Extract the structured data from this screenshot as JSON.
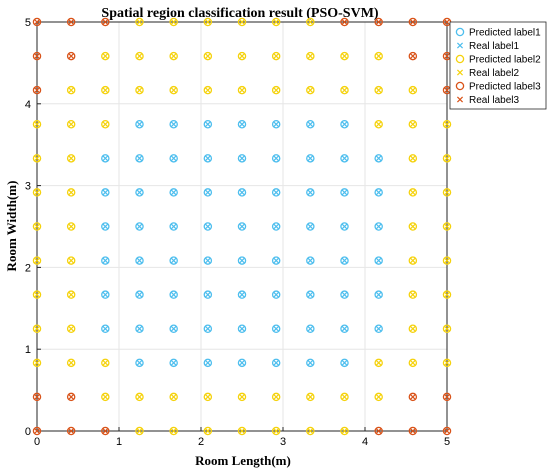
{
  "chart_data": {
    "type": "scatter",
    "title": "Spatial region classification result (PSO-SVM)",
    "xlabel": "Room Length(m)",
    "ylabel": "Room Width(m)",
    "xlim": [
      0,
      5
    ],
    "ylim": [
      0,
      5
    ],
    "xticks": [
      "0",
      "1",
      "2",
      "3",
      "4",
      "5"
    ],
    "yticks": [
      "0",
      "1",
      "2",
      "3",
      "4",
      "5"
    ],
    "grid": true,
    "legend_position": "top-right",
    "x": [
      0,
      0.4167,
      0.8333,
      1.25,
      1.6667,
      2.0833,
      2.5,
      2.9167,
      3.3333,
      3.75,
      4.1667,
      4.5833,
      5
    ],
    "y": [
      0,
      0.4167,
      0.8333,
      1.25,
      1.6667,
      2.0833,
      2.5,
      2.9167,
      3.3333,
      3.75,
      4.1667,
      4.5833,
      5
    ],
    "label_grid_rows_top_to_bottom": [
      "3332222223333",
      "3322222222233",
      "3222222222223",
      "2221111111222",
      "2211111111122",
      "2211111111122",
      "2211111111122",
      "2211111111122",
      "2211111111122",
      "2211111111122",
      "2221111111222",
      "3322222222233",
      "3332222222333"
    ],
    "series": [
      {
        "name": "Predicted label1",
        "marker": "circle",
        "color": "#4DBEEE",
        "label": 1,
        "kind": "predicted"
      },
      {
        "name": "Real label1",
        "marker": "x",
        "color": "#4DBEEE",
        "label": 1,
        "kind": "real"
      },
      {
        "name": "Predicted label2",
        "marker": "circle",
        "color": "#F5D20C",
        "label": 2,
        "kind": "predicted"
      },
      {
        "name": "Real label2",
        "marker": "x",
        "color": "#F5D20C",
        "label": 2,
        "kind": "real"
      },
      {
        "name": "Predicted label3",
        "marker": "circle",
        "color": "#D95319",
        "label": 3,
        "kind": "predicted"
      },
      {
        "name": "Real label3",
        "marker": "x",
        "color": "#D95319",
        "label": 3,
        "kind": "real"
      }
    ]
  }
}
